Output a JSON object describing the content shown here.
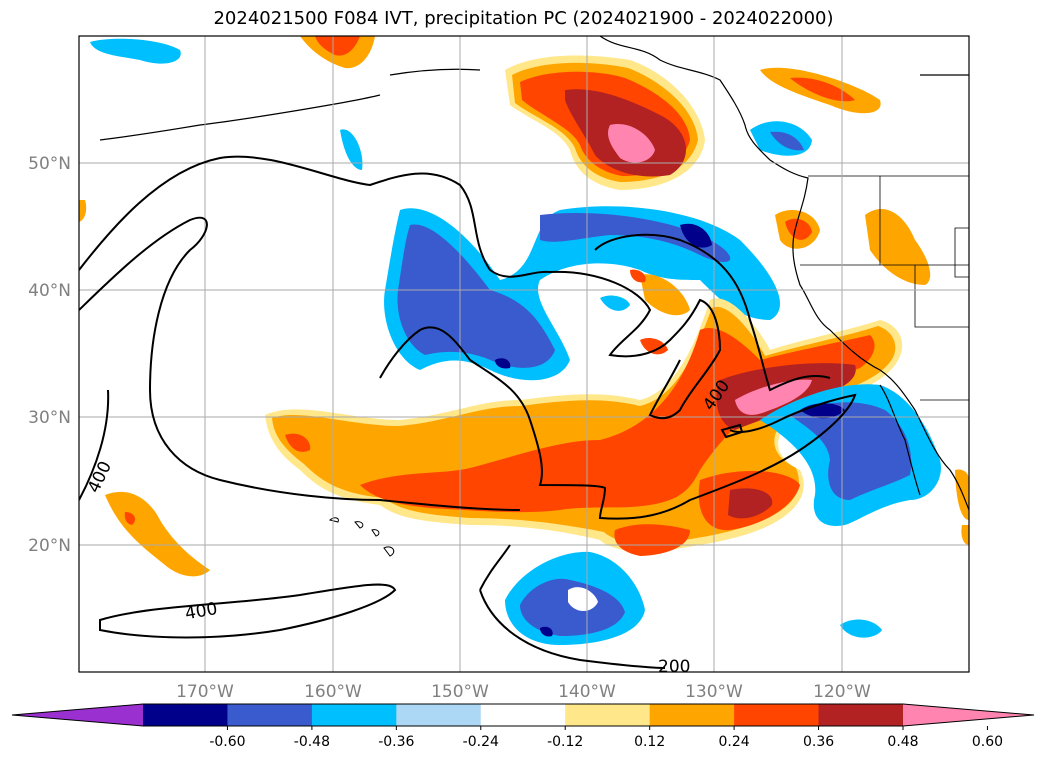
{
  "title": "2024021500 F084 IVT, precipitation PC (2024021900 - 2024022000)",
  "latitude_labels": [
    "50°N",
    "40°N",
    "30°N",
    "20°N"
  ],
  "longitude_labels": [
    "170°W",
    "160°W",
    "150°W",
    "140°W",
    "130°W",
    "120°W"
  ],
  "contour_labels": [
    "400",
    "400",
    "400",
    "200"
  ],
  "colorbar": {
    "ticks": [
      "-0.60",
      "-0.48",
      "-0.36",
      "-0.24",
      "-0.12",
      "0.12",
      "0.24",
      "0.36",
      "0.48",
      "0.60"
    ],
    "colors": [
      "#9b30d0",
      "#00008b",
      "#3a5bcd",
      "#00bfff",
      "#add8f5",
      "#ffffff",
      "#ffe78a",
      "#ffa500",
      "#ff4500",
      "#b22222",
      "#ff85b0"
    ]
  }
}
